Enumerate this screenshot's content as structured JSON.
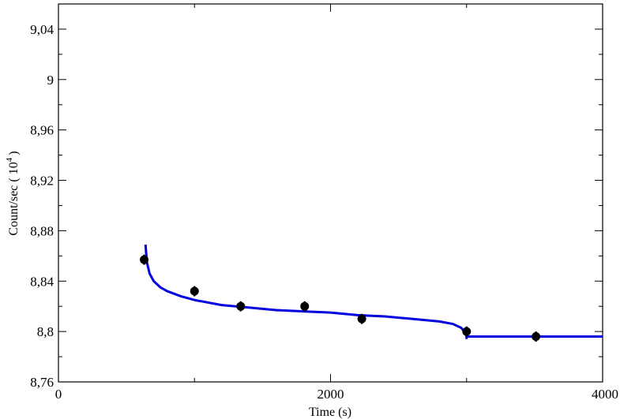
{
  "chart_data": {
    "type": "scatter",
    "title": "",
    "xlabel": "Time (s)",
    "ylabel": "Count/sec ( 10",
    "ylabel_exponent": "4",
    "ylabel_close": ")",
    "xlim": [
      0,
      4000
    ],
    "ylim": [
      8.76,
      9.06
    ],
    "grid": false,
    "x_ticks": [
      {
        "value": 0,
        "label": "0"
      },
      {
        "value": 2000,
        "label": "2000"
      },
      {
        "value": 4000,
        "label": "4000"
      }
    ],
    "y_ticks": [
      {
        "value": 8.76,
        "label": "8,76"
      },
      {
        "value": 8.8,
        "label": "8,8"
      },
      {
        "value": 8.84,
        "label": "8,84"
      },
      {
        "value": 8.88,
        "label": "8,88"
      },
      {
        "value": 8.92,
        "label": "8,92"
      },
      {
        "value": 8.96,
        "label": "8,96"
      },
      {
        "value": 9.0,
        "label": "9"
      },
      {
        "value": 9.04,
        "label": "9,04"
      }
    ],
    "series": [
      {
        "type": "scatter",
        "color": "#000000",
        "points": [
          {
            "x": 630,
            "y": 8.857,
            "err": 0.004
          },
          {
            "x": 1000,
            "y": 8.832,
            "err": 0.004
          },
          {
            "x": 1340,
            "y": 8.82,
            "err": 0.004
          },
          {
            "x": 1810,
            "y": 8.82,
            "err": 0.004
          },
          {
            "x": 2230,
            "y": 8.81,
            "err": 0.004
          },
          {
            "x": 3000,
            "y": 8.8,
            "err": 0.004
          },
          {
            "x": 3510,
            "y": 8.796,
            "err": 0.004
          }
        ]
      },
      {
        "type": "line",
        "color": "#0000e0",
        "points": [
          {
            "x": 640,
            "y": 8.869
          },
          {
            "x": 650,
            "y": 8.855
          },
          {
            "x": 670,
            "y": 8.846
          },
          {
            "x": 700,
            "y": 8.84
          },
          {
            "x": 750,
            "y": 8.835
          },
          {
            "x": 800,
            "y": 8.832
          },
          {
            "x": 900,
            "y": 8.828
          },
          {
            "x": 1000,
            "y": 8.825
          },
          {
            "x": 1200,
            "y": 8.821
          },
          {
            "x": 1400,
            "y": 8.819
          },
          {
            "x": 1600,
            "y": 8.817
          },
          {
            "x": 1800,
            "y": 8.816
          },
          {
            "x": 2000,
            "y": 8.815
          },
          {
            "x": 2200,
            "y": 8.813
          },
          {
            "x": 2400,
            "y": 8.812
          },
          {
            "x": 2600,
            "y": 8.81
          },
          {
            "x": 2800,
            "y": 8.808
          },
          {
            "x": 2900,
            "y": 8.806
          },
          {
            "x": 2960,
            "y": 8.803
          },
          {
            "x": 2990,
            "y": 8.799
          },
          {
            "x": 3000,
            "y": 8.796
          },
          {
            "x": 4000,
            "y": 8.796
          }
        ]
      }
    ]
  }
}
